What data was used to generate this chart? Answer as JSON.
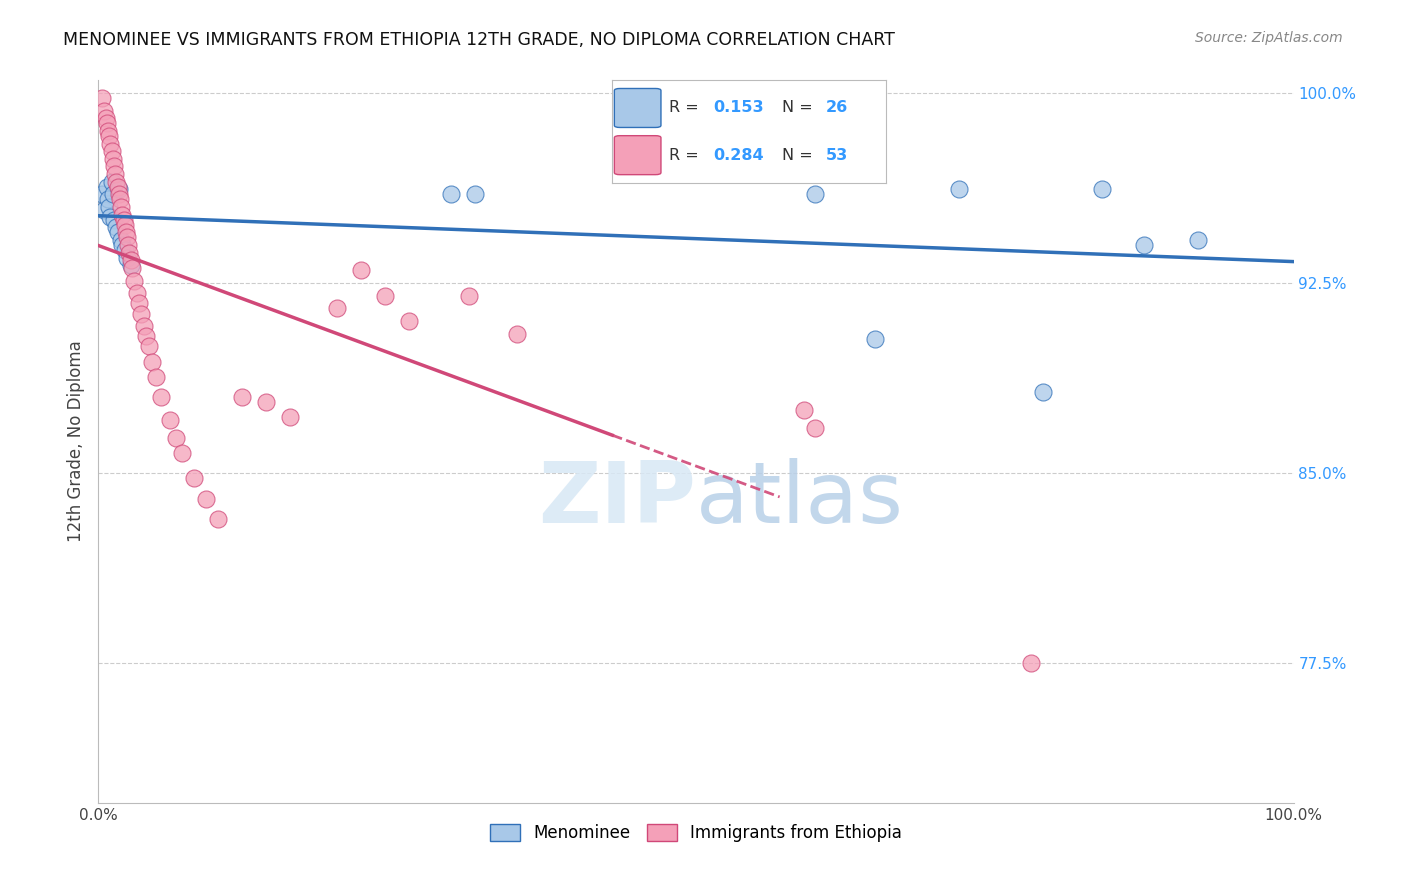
{
  "title": "MENOMINEE VS IMMIGRANTS FROM ETHIOPIA 12TH GRADE, NO DIPLOMA CORRELATION CHART",
  "source": "Source: ZipAtlas.com",
  "ylabel": "12th Grade, No Diploma",
  "xlim": [
    0.0,
    1.0
  ],
  "ylim": [
    0.72,
    1.005
  ],
  "x_ticks": [
    0.0,
    0.1,
    0.2,
    0.3,
    0.4,
    0.5,
    0.6,
    0.7,
    0.8,
    0.9,
    1.0
  ],
  "x_tick_labels": [
    "0.0%",
    "",
    "",
    "",
    "",
    "",
    "",
    "",
    "",
    "",
    "100.0%"
  ],
  "y_ticks": [
    0.775,
    0.85,
    0.925,
    1.0
  ],
  "y_tick_labels": [
    "77.5%",
    "85.0%",
    "92.5%",
    "100.0%"
  ],
  "blue_R": 0.153,
  "blue_N": 26,
  "pink_R": 0.284,
  "pink_N": 53,
  "blue_color": "#a8c8e8",
  "pink_color": "#f4a0b8",
  "blue_line_color": "#3070b8",
  "pink_line_color": "#d04878",
  "legend_label_blue": "Menominee",
  "legend_label_pink": "Immigrants from Ethiopia",
  "blue_x": [
    0.003,
    0.005,
    0.007,
    0.008,
    0.009,
    0.01,
    0.011,
    0.012,
    0.013,
    0.015,
    0.016,
    0.017,
    0.019,
    0.02,
    0.022,
    0.024,
    0.027,
    0.295,
    0.315,
    0.6,
    0.65,
    0.72,
    0.79,
    0.84,
    0.875,
    0.92
  ],
  "blue_y": [
    0.96,
    0.954,
    0.963,
    0.958,
    0.955,
    0.951,
    0.965,
    0.96,
    0.95,
    0.947,
    0.945,
    0.962,
    0.942,
    0.94,
    0.938,
    0.935,
    0.932,
    0.96,
    0.96,
    0.96,
    0.903,
    0.962,
    0.882,
    0.962,
    0.94,
    0.942
  ],
  "pink_x": [
    0.003,
    0.005,
    0.006,
    0.007,
    0.008,
    0.009,
    0.01,
    0.011,
    0.012,
    0.013,
    0.014,
    0.015,
    0.016,
    0.017,
    0.018,
    0.019,
    0.02,
    0.021,
    0.022,
    0.023,
    0.024,
    0.025,
    0.026,
    0.027,
    0.028,
    0.03,
    0.032,
    0.034,
    0.036,
    0.038,
    0.04,
    0.042,
    0.045,
    0.048,
    0.052,
    0.06,
    0.065,
    0.07,
    0.08,
    0.09,
    0.1,
    0.12,
    0.14,
    0.16,
    0.2,
    0.22,
    0.24,
    0.26,
    0.31,
    0.35,
    0.59,
    0.6,
    0.78
  ],
  "pink_y": [
    0.998,
    0.993,
    0.99,
    0.988,
    0.985,
    0.983,
    0.98,
    0.977,
    0.974,
    0.971,
    0.968,
    0.965,
    0.963,
    0.96,
    0.958,
    0.955,
    0.952,
    0.95,
    0.948,
    0.945,
    0.943,
    0.94,
    0.937,
    0.934,
    0.931,
    0.926,
    0.921,
    0.917,
    0.913,
    0.908,
    0.904,
    0.9,
    0.894,
    0.888,
    0.88,
    0.871,
    0.864,
    0.858,
    0.848,
    0.84,
    0.832,
    0.88,
    0.878,
    0.872,
    0.915,
    0.93,
    0.92,
    0.91,
    0.92,
    0.905,
    0.875,
    0.868,
    0.775
  ],
  "pink_line_solid_end": 0.43,
  "pink_line_dash_end": 0.57
}
